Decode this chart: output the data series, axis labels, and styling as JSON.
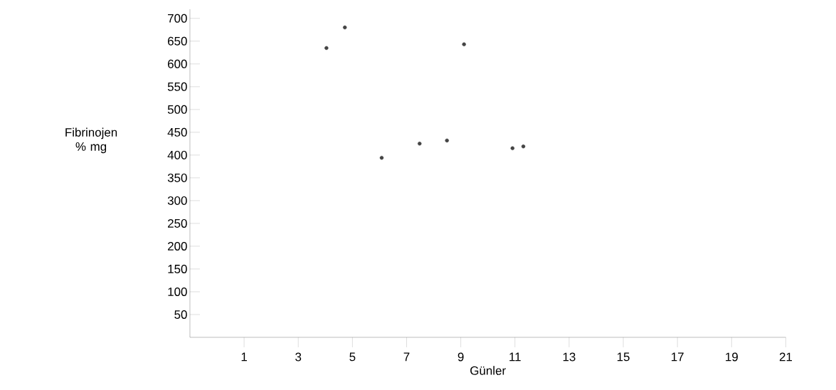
{
  "chart_data": {
    "type": "scatter",
    "xlabel": "Günler",
    "ylabel": "Fibrinojen % mg",
    "x": [
      4.04,
      4.72,
      6.08,
      7.48,
      8.49,
      9.12,
      10.91,
      11.31
    ],
    "values": [
      635,
      680,
      394,
      425,
      432,
      643,
      415,
      419
    ],
    "color": "#444444",
    "marker": "circle",
    "xlim": [
      -1,
      21
    ],
    "xticks": [
      1,
      3,
      5,
      7,
      9,
      11,
      13,
      15,
      17,
      19,
      21
    ],
    "ylim": [
      0,
      720
    ],
    "yticks": [
      50,
      100,
      150,
      200,
      250,
      300,
      350,
      400,
      450,
      500,
      550,
      600,
      650,
      700
    ],
    "grid": false
  }
}
